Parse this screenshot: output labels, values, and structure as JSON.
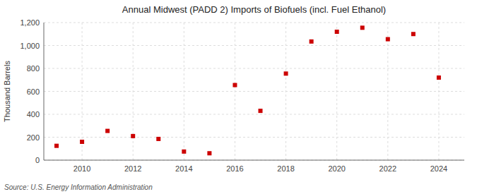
{
  "chart_data": {
    "type": "scatter",
    "title": "Annual Midwest (PADD 2) Imports of Biofuels (incl. Fuel Ethanol)",
    "ylabel": "Thousand Barrels",
    "annotations": [
      "Source: U.S. Energy Information Administration"
    ],
    "x": [
      2009,
      2010,
      2011,
      2012,
      2013,
      2014,
      2015,
      2016,
      2017,
      2018,
      2019,
      2020,
      2021,
      2022,
      2023,
      2024
    ],
    "values": [
      125,
      160,
      255,
      210,
      185,
      75,
      60,
      655,
      430,
      755,
      1035,
      1120,
      1155,
      1055,
      1100,
      720
    ],
    "color": "#cc0000",
    "marker": "square",
    "grid": true,
    "xlim": [
      2008.5,
      2025
    ],
    "xticks": [
      2010,
      2012,
      2014,
      2016,
      2018,
      2020,
      2022,
      2024
    ],
    "ylim": [
      0,
      1200
    ],
    "yticks": [
      0,
      200,
      400,
      600,
      800,
      {
        "value": 1000,
        "label": "1,000"
      },
      {
        "value": 1200,
        "label": "1,200"
      }
    ]
  }
}
